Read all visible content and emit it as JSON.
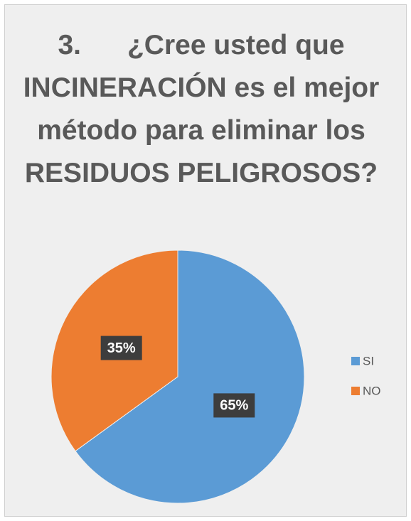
{
  "chart_data": {
    "type": "pie",
    "title": "3.      ¿Cree usted que INCINERACIÓN es el mejor método para eliminar los RESIDUOS PELIGROSOS?",
    "categories": [
      "SI",
      "NO"
    ],
    "values": [
      65,
      35
    ],
    "value_labels": [
      "65%",
      "35%"
    ],
    "colors": [
      "#5b9bd5",
      "#ed7d31"
    ],
    "legend": "right"
  }
}
